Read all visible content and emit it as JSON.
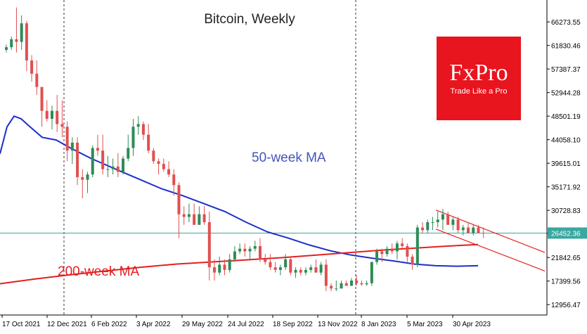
{
  "chart_data": {
    "type": "candlestick",
    "title": "Bitcoin, Weekly",
    "price_axis": [
      "66273.55",
      "61830.46",
      "57387.37",
      "52944.28",
      "48501.19",
      "44058.10",
      "39615.01",
      "35171.92",
      "30728.83",
      "26452.36",
      "21842.65",
      "17399.56",
      "12956.47"
    ],
    "price_axis_values": [
      66273.55,
      61830.46,
      57387.37,
      52944.28,
      48501.19,
      44058.1,
      39615.01,
      35171.92,
      30728.83,
      26452.36,
      21842.65,
      17399.56,
      12956.47
    ],
    "date_axis": [
      "17 Oct 2021",
      "12 Dec 2021",
      "6 Feb 2022",
      "3 Apr 2022",
      "29 May 2022",
      "24 Jul 2022",
      "18 Sep 2022",
      "13 Nov 2022",
      "8 Jan 2023",
      "5 Mar 2023",
      "30 Apr 2023"
    ],
    "ylim": [
      11000,
      70400
    ],
    "current_price": "26452.36",
    "colors": {
      "up": "#2e8b57",
      "down": "#e05050",
      "ma50": "#1d2fc9",
      "ma200": "#e31f1f",
      "price_line": "#3aa7a0",
      "trend": "#e31f1f",
      "brand_bg": "#e8141e"
    },
    "candles": [
      [
        61000,
        62000,
        60500,
        61500
      ],
      [
        61500,
        63500,
        61000,
        63000
      ],
      [
        63000,
        69000,
        60500,
        62500
      ],
      [
        62500,
        67500,
        61000,
        66000
      ],
      [
        66000,
        66500,
        57000,
        59000
      ],
      [
        59000,
        60000,
        55000,
        56500
      ],
      [
        56500,
        59000,
        52500,
        54000
      ],
      [
        54000,
        54000,
        46500,
        49500
      ],
      [
        49500,
        51500,
        47500,
        48000
      ],
      [
        48000,
        50500,
        46000,
        49500
      ],
      [
        49500,
        52500,
        45500,
        47000
      ],
      [
        47000,
        51500,
        44500,
        46500
      ],
      [
        46500,
        47500,
        40000,
        42000
      ],
      [
        42000,
        44500,
        39500,
        43500
      ],
      [
        43500,
        44500,
        35500,
        37000
      ],
      [
        37000,
        38500,
        33000,
        36500
      ],
      [
        36500,
        38000,
        34000,
        37500
      ],
      [
        37500,
        43000,
        37000,
        42500
      ],
      [
        42500,
        45000,
        41000,
        42000
      ],
      [
        42000,
        45000,
        37500,
        38500
      ],
      [
        38500,
        41000,
        37000,
        38500
      ],
      [
        38500,
        40500,
        37500,
        39000
      ],
      [
        39000,
        41500,
        37000,
        38000
      ],
      [
        38000,
        41000,
        37500,
        40500
      ],
      [
        40500,
        45000,
        40000,
        42500
      ],
      [
        42500,
        48000,
        41000,
        46500
      ],
      [
        46500,
        48500,
        45000,
        47000
      ],
      [
        47000,
        47500,
        44000,
        45000
      ],
      [
        45000,
        47000,
        41500,
        42000
      ],
      [
        42000,
        42500,
        39500,
        40000
      ],
      [
        40000,
        40500,
        37500,
        39500
      ],
      [
        39500,
        40500,
        38000,
        38500
      ],
      [
        38500,
        40000,
        37000,
        37500
      ],
      [
        37500,
        38500,
        33500,
        35500
      ],
      [
        35500,
        36000,
        25500,
        30000
      ],
      [
        30000,
        31500,
        28000,
        29500
      ],
      [
        29500,
        32000,
        28500,
        30000
      ],
      [
        30000,
        32000,
        28500,
        28000
      ],
      [
        28000,
        31500,
        28500,
        30000
      ],
      [
        30000,
        31500,
        28000,
        28500
      ],
      [
        28500,
        30500,
        17500,
        20000
      ],
      [
        20000,
        21500,
        17500,
        19000
      ],
      [
        19000,
        22000,
        18500,
        20500
      ],
      [
        20500,
        21500,
        18500,
        19500
      ],
      [
        19500,
        22500,
        19000,
        21500
      ],
      [
        21500,
        24000,
        21000,
        23000
      ],
      [
        23000,
        24500,
        22500,
        23500
      ],
      [
        23500,
        24500,
        22000,
        23000
      ],
      [
        23000,
        24000,
        21500,
        23500
      ],
      [
        23500,
        25000,
        23000,
        24000
      ],
      [
        24000,
        25500,
        21000,
        21500
      ],
      [
        21500,
        22500,
        20500,
        21000
      ],
      [
        21000,
        22500,
        19500,
        20000
      ],
      [
        20000,
        21000,
        19000,
        19500
      ],
      [
        19500,
        20500,
        18500,
        20000
      ],
      [
        20000,
        22500,
        19500,
        21500
      ],
      [
        21500,
        22000,
        18500,
        19000
      ],
      [
        19000,
        20000,
        18000,
        19500
      ],
      [
        19500,
        20000,
        18500,
        19000
      ],
      [
        19000,
        20000,
        18500,
        19500
      ],
      [
        19500,
        20500,
        19000,
        20000
      ],
      [
        20000,
        21500,
        19000,
        19000
      ],
      [
        19000,
        21000,
        18500,
        20500
      ],
      [
        20500,
        21500,
        15500,
        16500
      ],
      [
        16500,
        17000,
        15500,
        16000
      ],
      [
        16000,
        17500,
        15500,
        16000
      ],
      [
        16000,
        17500,
        16000,
        17000
      ],
      [
        17000,
        17500,
        16500,
        16500
      ],
      [
        16500,
        18000,
        16500,
        17500
      ],
      [
        17500,
        18500,
        16500,
        17000
      ],
      [
        17000,
        17500,
        16500,
        16800
      ],
      [
        16800,
        17500,
        16500,
        17000
      ],
      [
        17000,
        21000,
        16500,
        21000
      ],
      [
        21000,
        23500,
        20500,
        23000
      ],
      [
        23000,
        23500,
        21000,
        22500
      ],
      [
        22500,
        24000,
        22000,
        23500
      ],
      [
        23500,
        24500,
        22500,
        23000
      ],
      [
        23000,
        25000,
        21500,
        24500
      ],
      [
        24500,
        25500,
        23500,
        24000
      ],
      [
        24000,
        24500,
        21000,
        22000
      ],
      [
        22000,
        22500,
        19500,
        20500
      ],
      [
        20500,
        28000,
        20000,
        27500
      ],
      [
        27500,
        28500,
        26500,
        27000
      ],
      [
        27000,
        29000,
        26500,
        28500
      ],
      [
        28500,
        29500,
        27000,
        28500
      ],
      [
        28500,
        30500,
        27500,
        29000
      ],
      [
        29000,
        31000,
        27000,
        30000
      ],
      [
        30000,
        30500,
        28500,
        28000
      ],
      [
        28000,
        29500,
        27000,
        29000
      ],
      [
        29000,
        29500,
        26500,
        27000
      ],
      [
        27000,
        28000,
        26000,
        27500
      ],
      [
        27500,
        28500,
        26500,
        26500
      ],
      [
        26500,
        28000,
        26000,
        27500
      ],
      [
        27500,
        28000,
        26500,
        26500
      ],
      [
        26500,
        27500,
        25500,
        26452
      ]
    ],
    "series": [
      {
        "name": "50-week MA",
        "label": "50-week MA",
        "values": [
          [
            0,
            41400
          ],
          [
            10,
            46500
          ],
          [
            20,
            48500
          ],
          [
            30,
            48000
          ],
          [
            40,
            46800
          ],
          [
            60,
            44500
          ],
          [
            80,
            44000
          ],
          [
            100,
            42500
          ],
          [
            130,
            40500
          ],
          [
            170,
            38200
          ],
          [
            200,
            36500
          ],
          [
            230,
            34800
          ],
          [
            260,
            33500
          ],
          [
            290,
            32000
          ],
          [
            320,
            30500
          ],
          [
            350,
            28500
          ],
          [
            380,
            26700
          ],
          [
            410,
            25500
          ],
          [
            440,
            24200
          ],
          [
            470,
            23100
          ],
          [
            500,
            22300
          ],
          [
            530,
            21700
          ],
          [
            560,
            21200
          ],
          [
            590,
            20600
          ],
          [
            620,
            20300
          ],
          [
            650,
            20200
          ],
          [
            680,
            20300
          ]
        ]
      },
      {
        "name": "200-week MA",
        "label": "200-week MA",
        "values": [
          [
            0,
            16900
          ],
          [
            50,
            17800
          ],
          [
            100,
            18600
          ],
          [
            150,
            19300
          ],
          [
            200,
            20000
          ],
          [
            250,
            20600
          ],
          [
            300,
            21000
          ],
          [
            350,
            21400
          ],
          [
            400,
            21800
          ],
          [
            450,
            22300
          ],
          [
            500,
            22800
          ],
          [
            550,
            23300
          ],
          [
            600,
            23700
          ],
          [
            650,
            24100
          ],
          [
            680,
            24300
          ]
        ]
      }
    ],
    "trend_lines": [
      {
        "name": "channel-upper",
        "from": [
          620,
          30800
        ],
        "to": [
          775,
          22800
        ]
      },
      {
        "name": "channel-lower",
        "from": [
          620,
          27200
        ],
        "to": [
          775,
          19300
        ]
      }
    ],
    "annotations": {
      "title": "Bitcoin, Weekly",
      "ma50_label": "50-week MA",
      "ma200_label": "200-week MA"
    }
  },
  "brand": {
    "name": "FxPro",
    "tagline": "Trade Like a Pro"
  }
}
